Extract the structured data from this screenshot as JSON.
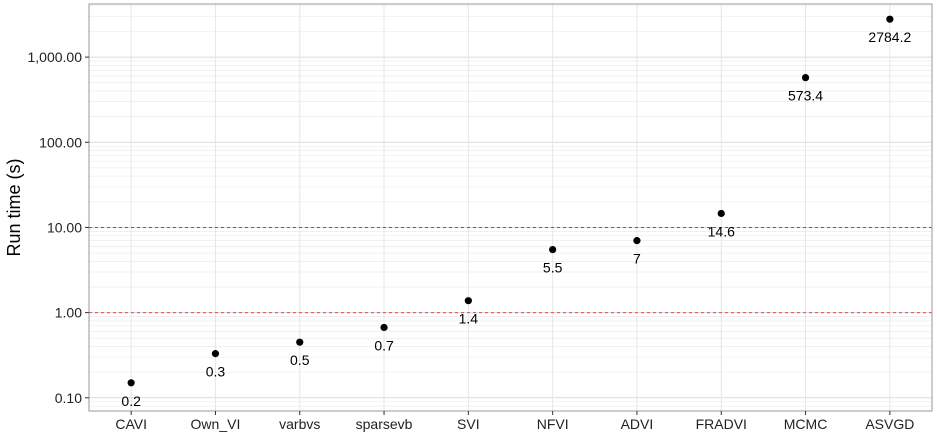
{
  "chart_data": {
    "type": "scatter",
    "title": "",
    "xlabel": "",
    "ylabel": "Run time (s)",
    "y_scale": "log10",
    "ylim": [
      0.07,
      4200
    ],
    "grid": true,
    "categories": [
      "CAVI",
      "Own_VI",
      "varbvs",
      "sparsevb",
      "SVI",
      "NFVI",
      "ADVI",
      "FRADVI",
      "MCMC",
      "ASVGD"
    ],
    "values": [
      0.15,
      0.33,
      0.45,
      0.67,
      1.38,
      5.5,
      7.0,
      14.6,
      573.4,
      2784.2
    ],
    "point_labels": [
      "0.2",
      "0.3",
      "0.5",
      "0.7",
      "1.4",
      "5.5",
      "7",
      "14.6",
      "573.4",
      "2784.2"
    ],
    "y_ticks": [
      {
        "value": 0.1,
        "label": "0.10"
      },
      {
        "value": 1,
        "label": "1.00"
      },
      {
        "value": 10,
        "label": "10.00"
      },
      {
        "value": 100,
        "label": "100.00"
      },
      {
        "value": 1000,
        "label": "1,000.00"
      }
    ],
    "reference_lines": [
      {
        "value": 1,
        "color": "#e8484f",
        "style": "dashed"
      },
      {
        "value": 10,
        "color": "#4a55d8",
        "style": "dashed"
      }
    ],
    "point_color": "#000000"
  }
}
